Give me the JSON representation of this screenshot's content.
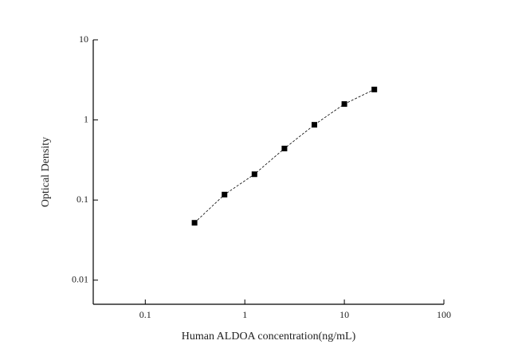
{
  "chart_data": {
    "type": "scatter",
    "x_label": "Human ALDOA concentration(ng/mL)",
    "y_label": "Optical Density",
    "log_x": true,
    "log_y": true,
    "xlim": [
      0.03,
      100
    ],
    "xticks": [
      0.1,
      1,
      10,
      100
    ],
    "ylim": [
      0.005,
      10
    ],
    "yticks": [
      0.01,
      0.1,
      1,
      10
    ],
    "color": "#000000",
    "connect": true,
    "x": [
      0.3125,
      0.625,
      1.25,
      2.5,
      5,
      10,
      20
    ],
    "values": [
      0.052,
      0.117,
      0.21,
      0.44,
      0.87,
      1.58,
      2.4
    ]
  }
}
